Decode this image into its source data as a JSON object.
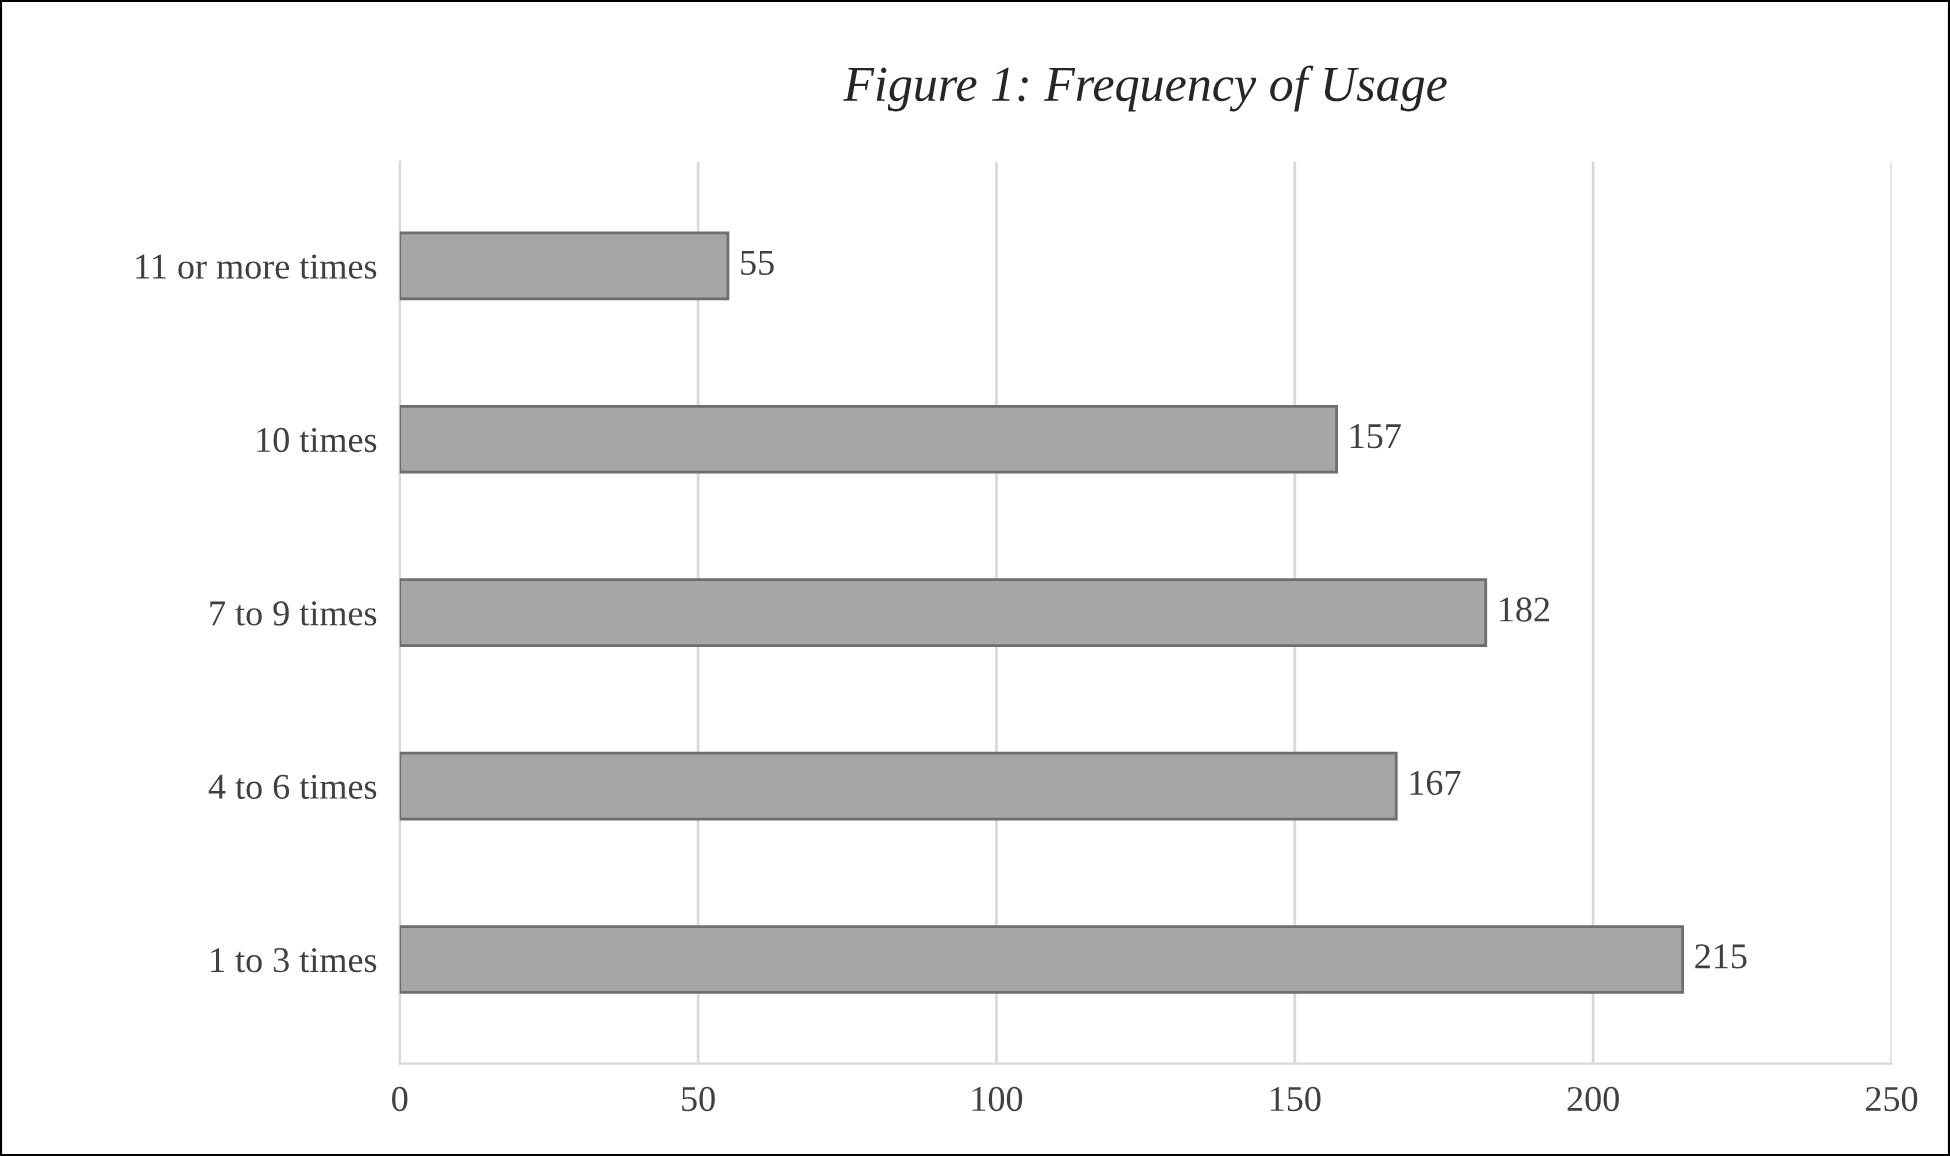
{
  "chart_data": {
    "type": "bar",
    "orientation": "horizontal",
    "title": "Figure 1: Frequency of Usage",
    "categories": [
      "11 or more times",
      "10 times",
      "7 to 9 times",
      "4 to 6 times",
      "1 to 3 times"
    ],
    "values": [
      55,
      157,
      182,
      167,
      215
    ],
    "color": "#a6a6a6",
    "xlim": [
      0,
      250
    ],
    "xticks": [
      0,
      50,
      100,
      150,
      200,
      250
    ],
    "grid": "x",
    "data_labels": true
  }
}
